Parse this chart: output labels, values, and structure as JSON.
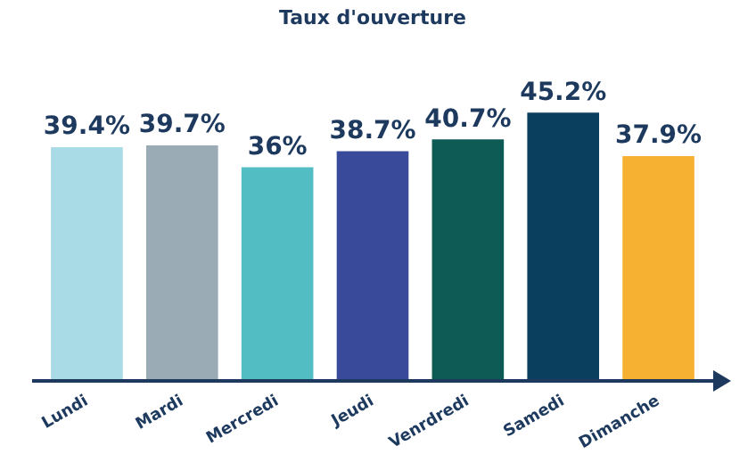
{
  "chart_data": {
    "type": "bar",
    "title": "Taux d'ouverture",
    "categories": [
      "Lundi",
      "Mardi",
      "Mercredi",
      "Jeudi",
      "Venrdredi",
      "Samedi",
      "Dimanche"
    ],
    "values": [
      39.4,
      39.7,
      36,
      38.7,
      40.7,
      45.2,
      37.9
    ],
    "colors": [
      "#a9dbe6",
      "#9aabb6",
      "#52bec4",
      "#394a9b",
      "#0e5a55",
      "#0b3f5e",
      "#f6b133"
    ],
    "value_labels": [
      "39.4%",
      "39.7%",
      "36%",
      "38.7%",
      "40.7%",
      "45.2%",
      "37.9%"
    ],
    "grid": false,
    "legend": false
  }
}
